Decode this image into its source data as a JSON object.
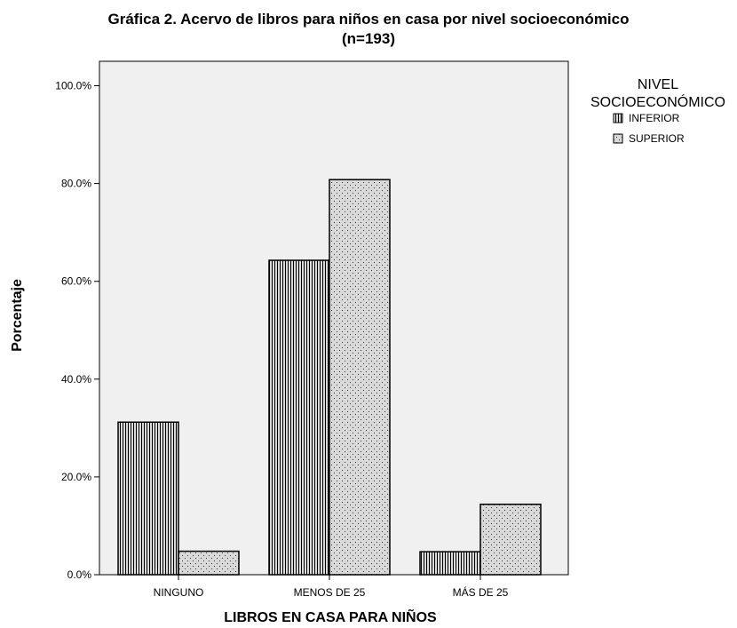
{
  "chart_data": {
    "type": "bar",
    "title": "Gráfica 2. Acervo de libros para niños en casa por nivel socioeconómico",
    "subtitle": "(n=193)",
    "xlabel": "LIBROS EN CASA PARA NIÑOS",
    "ylabel": "Porcentaje",
    "categories": [
      "NINGUNO",
      "MENOS DE 25",
      "MÁS DE 25"
    ],
    "series": [
      {
        "name": "INFERIOR",
        "values": [
          31.2,
          64.3,
          4.7
        ],
        "pattern": "vertical-stripes"
      },
      {
        "name": "SUPERIOR",
        "values": [
          4.8,
          80.8,
          14.4
        ],
        "pattern": "dots"
      }
    ],
    "ylim": [
      0,
      105
    ],
    "yticks": [
      0,
      20,
      40,
      60,
      80,
      100
    ],
    "ytick_labels": [
      "0.0%",
      "20.0%",
      "40.0%",
      "60.0%",
      "80.0%",
      "100.0%"
    ],
    "legend": {
      "title_line1": "NIVEL",
      "title_line2": "SOCIOECONÓMICO",
      "placement": "right"
    },
    "grid": false,
    "colors": {
      "plot_background": "#f0f0f0",
      "bar_fill": "#d9d9d9",
      "stroke": "#000000"
    }
  }
}
